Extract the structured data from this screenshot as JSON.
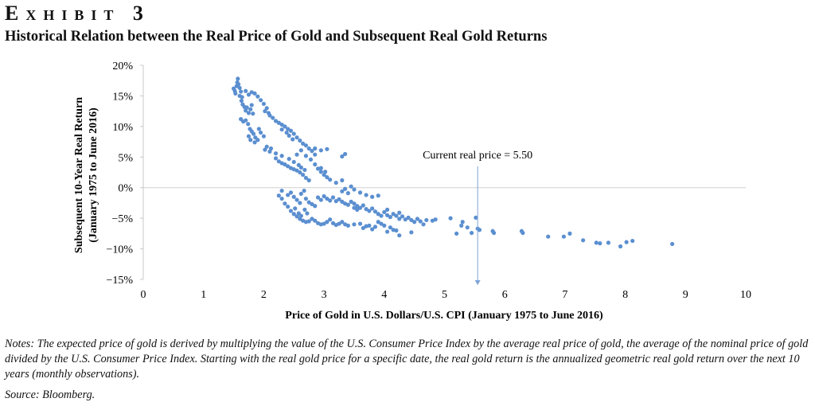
{
  "header": {
    "exhibit": "Exhibit 3",
    "title": "Historical Relation between the Real Price of Gold and Subsequent Real Gold Returns"
  },
  "notes": "Notes: The expected price of gold is derived by multiplying the value of the U.S. Consumer Price Index by the average real price of gold, the average of the nominal price of gold divided by the U.S. Consumer Price Index. Starting with the real gold price for a specific date, the real gold return is the annualized geometric real gold return over the next 10 years (monthly observations).",
  "source": "Source: Bloomberg.",
  "colors": {
    "points": "#5b8fd0",
    "annotation_line": "#7da3d8",
    "zero_line": "#d0d0d0"
  },
  "chart_data": {
    "type": "scatter",
    "xlabel": "Price of Gold in U.S. Dollars/U.S. CPI (January 1975 to June 2016)",
    "ylabel": [
      "Subsequent 10-Year Real Return",
      "(January 1975 to June 2016)"
    ],
    "xlim": [
      0,
      10
    ],
    "ylim": [
      -15,
      20
    ],
    "xticks": [
      "0",
      "1",
      "2",
      "3",
      "4",
      "5",
      "6",
      "7",
      "8",
      "9",
      "10"
    ],
    "yticks": [
      "20%",
      "15%",
      "10%",
      "5%",
      "0%",
      "−5%",
      "−10%",
      "−15%"
    ],
    "grid": false,
    "annotation": {
      "text": "Current real price = 5.50",
      "x": 5.55
    },
    "points": [
      [
        1.5,
        16.2
      ],
      [
        1.52,
        15.8
      ],
      [
        1.53,
        15.4
      ],
      [
        1.55,
        16.6
      ],
      [
        1.56,
        17.2
      ],
      [
        1.57,
        17.8
      ],
      [
        1.58,
        16.9
      ],
      [
        1.6,
        16.3
      ],
      [
        1.62,
        15.7
      ],
      [
        1.6,
        15
      ],
      [
        1.63,
        14.2
      ],
      [
        1.65,
        13.6
      ],
      [
        1.64,
        14.8
      ],
      [
        1.68,
        13.2
      ],
      [
        1.7,
        12.6
      ],
      [
        1.72,
        13.1
      ],
      [
        1.75,
        12.2
      ],
      [
        1.78,
        12.8
      ],
      [
        1.8,
        13.5
      ],
      [
        1.82,
        12.1
      ],
      [
        1.62,
        11.2
      ],
      [
        1.66,
        10.8
      ],
      [
        1.7,
        11
      ],
      [
        1.74,
        10.4
      ],
      [
        1.77,
        9.6
      ],
      [
        1.8,
        9.2
      ],
      [
        1.83,
        8.8
      ],
      [
        1.86,
        8.2
      ],
      [
        1.9,
        7.8
      ],
      [
        1.85,
        7.4
      ],
      [
        1.92,
        9.6
      ],
      [
        1.95,
        9
      ],
      [
        2,
        8.4
      ],
      [
        1.75,
        8.4
      ],
      [
        1.78,
        7.8
      ],
      [
        2.02,
        6.2
      ],
      [
        2.05,
        6.7
      ],
      [
        2.1,
        5.9
      ],
      [
        2.12,
        6.4
      ],
      [
        2.2,
        5.6
      ],
      [
        1.7,
        15.8
      ],
      [
        1.75,
        15.2
      ],
      [
        1.8,
        15.6
      ],
      [
        1.85,
        15.4
      ],
      [
        1.9,
        14.9
      ],
      [
        1.95,
        14.3
      ],
      [
        2,
        13.7
      ],
      [
        2.05,
        13
      ],
      [
        2.02,
        12.5
      ],
      [
        2.08,
        12.2
      ],
      [
        2.1,
        11.8
      ],
      [
        2.15,
        11.4
      ],
      [
        2.2,
        10.9
      ],
      [
        2.25,
        10.6
      ],
      [
        2.3,
        10.3
      ],
      [
        2.35,
        10
      ],
      [
        2.4,
        9.6
      ],
      [
        2.45,
        9.3
      ],
      [
        2.5,
        8.8
      ],
      [
        2.55,
        8.2
      ],
      [
        2.6,
        7.7
      ],
      [
        2.65,
        7.2
      ],
      [
        2.7,
        6.9
      ],
      [
        2.75,
        6.4
      ],
      [
        2.8,
        6
      ],
      [
        2.85,
        5.4
      ],
      [
        2.3,
        9.5
      ],
      [
        2.38,
        9
      ],
      [
        2.42,
        8.5
      ],
      [
        2.48,
        7.9
      ],
      [
        2.2,
        4.8
      ],
      [
        2.25,
        4.3
      ],
      [
        2.3,
        4
      ],
      [
        2.35,
        3.8
      ],
      [
        2.4,
        3.5
      ],
      [
        2.45,
        3.2
      ],
      [
        2.5,
        3
      ],
      [
        2.55,
        2.8
      ],
      [
        2.6,
        2.5
      ],
      [
        2.65,
        2.1
      ],
      [
        2.7,
        1.6
      ],
      [
        2.75,
        1.2
      ],
      [
        2.5,
        4.2
      ],
      [
        2.58,
        3.7
      ],
      [
        2.62,
        3.3
      ],
      [
        2.68,
        2.9
      ],
      [
        2.3,
        5.2
      ],
      [
        2.42,
        4.7
      ],
      [
        2.55,
        5.4
      ],
      [
        2.62,
        6.1
      ],
      [
        2.7,
        5.2
      ],
      [
        2.78,
        4.6
      ],
      [
        2.85,
        3.8
      ],
      [
        2.9,
        3.1
      ],
      [
        2.95,
        2.6
      ],
      [
        3,
        2.1
      ],
      [
        3.05,
        1.7
      ],
      [
        3.1,
        1.3
      ],
      [
        2.85,
        6.4
      ],
      [
        2.95,
        6.1
      ],
      [
        3.05,
        6.3
      ],
      [
        3.3,
        5.1
      ],
      [
        3.35,
        5.5
      ],
      [
        2.95,
        3.2
      ],
      [
        3.02,
        2.6
      ],
      [
        2.25,
        -1.3
      ],
      [
        2.3,
        -1.8
      ],
      [
        2.35,
        -2.6
      ],
      [
        2.4,
        -3.1
      ],
      [
        2.45,
        -3.8
      ],
      [
        2.5,
        -4.3
      ],
      [
        2.55,
        -4.7
      ],
      [
        2.6,
        -5.1
      ],
      [
        2.65,
        -5.4
      ],
      [
        2.7,
        -5.6
      ],
      [
        2.75,
        -5.5
      ],
      [
        2.8,
        -5.1
      ],
      [
        2.85,
        -5.4
      ],
      [
        2.9,
        -5.8
      ],
      [
        2.95,
        -6
      ],
      [
        3,
        -5.9
      ],
      [
        3.05,
        -5.6
      ],
      [
        3.1,
        -5.2
      ],
      [
        3.15,
        -5.8
      ],
      [
        3.2,
        -6.1
      ],
      [
        3.25,
        -5.9
      ],
      [
        3.3,
        -5.6
      ],
      [
        3.35,
        -6
      ],
      [
        3.4,
        -6.2
      ],
      [
        3.5,
        -6
      ],
      [
        3.6,
        -5.9
      ],
      [
        3.7,
        -6.3
      ],
      [
        3.8,
        -6.8
      ],
      [
        3.85,
        -6.4
      ],
      [
        3.9,
        -5.6
      ],
      [
        3.95,
        -5.9
      ],
      [
        4,
        -6.2
      ],
      [
        4.1,
        -6.5
      ],
      [
        4.2,
        -7
      ],
      [
        4.25,
        -7.8
      ],
      [
        2.45,
        -0.8
      ],
      [
        2.5,
        -1.5
      ],
      [
        2.55,
        -2
      ],
      [
        2.6,
        -2.5
      ],
      [
        2.62,
        -1
      ],
      [
        2.67,
        -0.5
      ],
      [
        2.7,
        -1.8
      ],
      [
        2.75,
        -2.4
      ],
      [
        2.8,
        -2.7
      ],
      [
        2.85,
        -3
      ],
      [
        2.9,
        -1.6
      ],
      [
        2.95,
        -2
      ],
      [
        3,
        -1.4
      ],
      [
        3.05,
        -1.8
      ],
      [
        3.1,
        -2.1
      ],
      [
        3.15,
        -1.6
      ],
      [
        3.2,
        -2.2
      ],
      [
        3.25,
        -1.9
      ],
      [
        3.3,
        -2.3
      ],
      [
        3.35,
        -2.6
      ],
      [
        3.4,
        -2.8
      ],
      [
        3.45,
        -2.3
      ],
      [
        3.5,
        -2.6
      ],
      [
        3.55,
        -3
      ],
      [
        3.6,
        -3.3
      ],
      [
        3.65,
        -2.9
      ],
      [
        3.7,
        -3.5
      ],
      [
        3.75,
        -3.8
      ],
      [
        3.8,
        -3.4
      ],
      [
        3.85,
        -3.9
      ],
      [
        3.9,
        -4.3
      ],
      [
        3.95,
        -4.6
      ],
      [
        4,
        -4
      ],
      [
        4.05,
        -4.5
      ],
      [
        4.1,
        -4.8
      ],
      [
        4.15,
        -4.3
      ],
      [
        4.2,
        -4.6
      ],
      [
        4.25,
        -5.1
      ],
      [
        4.3,
        -4.7
      ],
      [
        4.35,
        -5.2
      ],
      [
        4.4,
        -4.9
      ],
      [
        4.45,
        -5.3
      ],
      [
        4.5,
        -5.6
      ],
      [
        4.55,
        -5.1
      ],
      [
        4.6,
        -5.5
      ],
      [
        4.65,
        -6
      ],
      [
        4.7,
        -5.3
      ],
      [
        3.3,
        -0.6
      ],
      [
        3.35,
        -0.2
      ],
      [
        3.4,
        -0.9
      ],
      [
        3.45,
        0.2
      ],
      [
        3.5,
        -0.3
      ],
      [
        3.6,
        -0.8
      ],
      [
        3.7,
        -1.2
      ],
      [
        3.8,
        -1.5
      ],
      [
        3.9,
        -1.3
      ],
      [
        3.3,
        1.2
      ],
      [
        3.2,
        0.8
      ],
      [
        2.4,
        -1.2
      ],
      [
        2.3,
        -0.5
      ],
      [
        5.1,
        -5
      ],
      [
        5.2,
        -7.5
      ],
      [
        5.28,
        -6.2
      ],
      [
        5.3,
        -5.6
      ],
      [
        5.38,
        -6.5
      ],
      [
        5.45,
        -7.4
      ],
      [
        5.55,
        -6.7
      ],
      [
        5.52,
        -4.9
      ],
      [
        5.58,
        -6.9
      ],
      [
        5.8,
        -7.1
      ],
      [
        5.82,
        -7.4
      ],
      [
        6.28,
        -7.1
      ],
      [
        6.3,
        -7.4
      ],
      [
        6.72,
        -8
      ],
      [
        6.98,
        -8
      ],
      [
        7.08,
        -7.5
      ],
      [
        7.3,
        -8.6
      ],
      [
        7.52,
        -9
      ],
      [
        7.58,
        -9.1
      ],
      [
        7.72,
        -9
      ],
      [
        7.92,
        -9.6
      ],
      [
        8.02,
        -8.9
      ],
      [
        8.12,
        -8.7
      ],
      [
        8.78,
        -9.2
      ],
      [
        4.8,
        -5.4
      ],
      [
        4.85,
        -5.2
      ],
      [
        3.5,
        -3.3
      ],
      [
        3.55,
        -3.6
      ],
      [
        4.05,
        -3.6
      ],
      [
        4.25,
        -4.1
      ],
      [
        3.65,
        -6.6
      ],
      [
        3.75,
        -6.2
      ],
      [
        4.15,
        -6.9
      ],
      [
        4.45,
        -7.3
      ],
      [
        4.05,
        -7.2
      ],
      [
        2.58,
        -4.2
      ],
      [
        2.52,
        -3.4
      ],
      [
        2.62,
        -4.6
      ],
      [
        2.68,
        -3.6
      ],
      [
        2.72,
        -4.2
      ]
    ]
  }
}
